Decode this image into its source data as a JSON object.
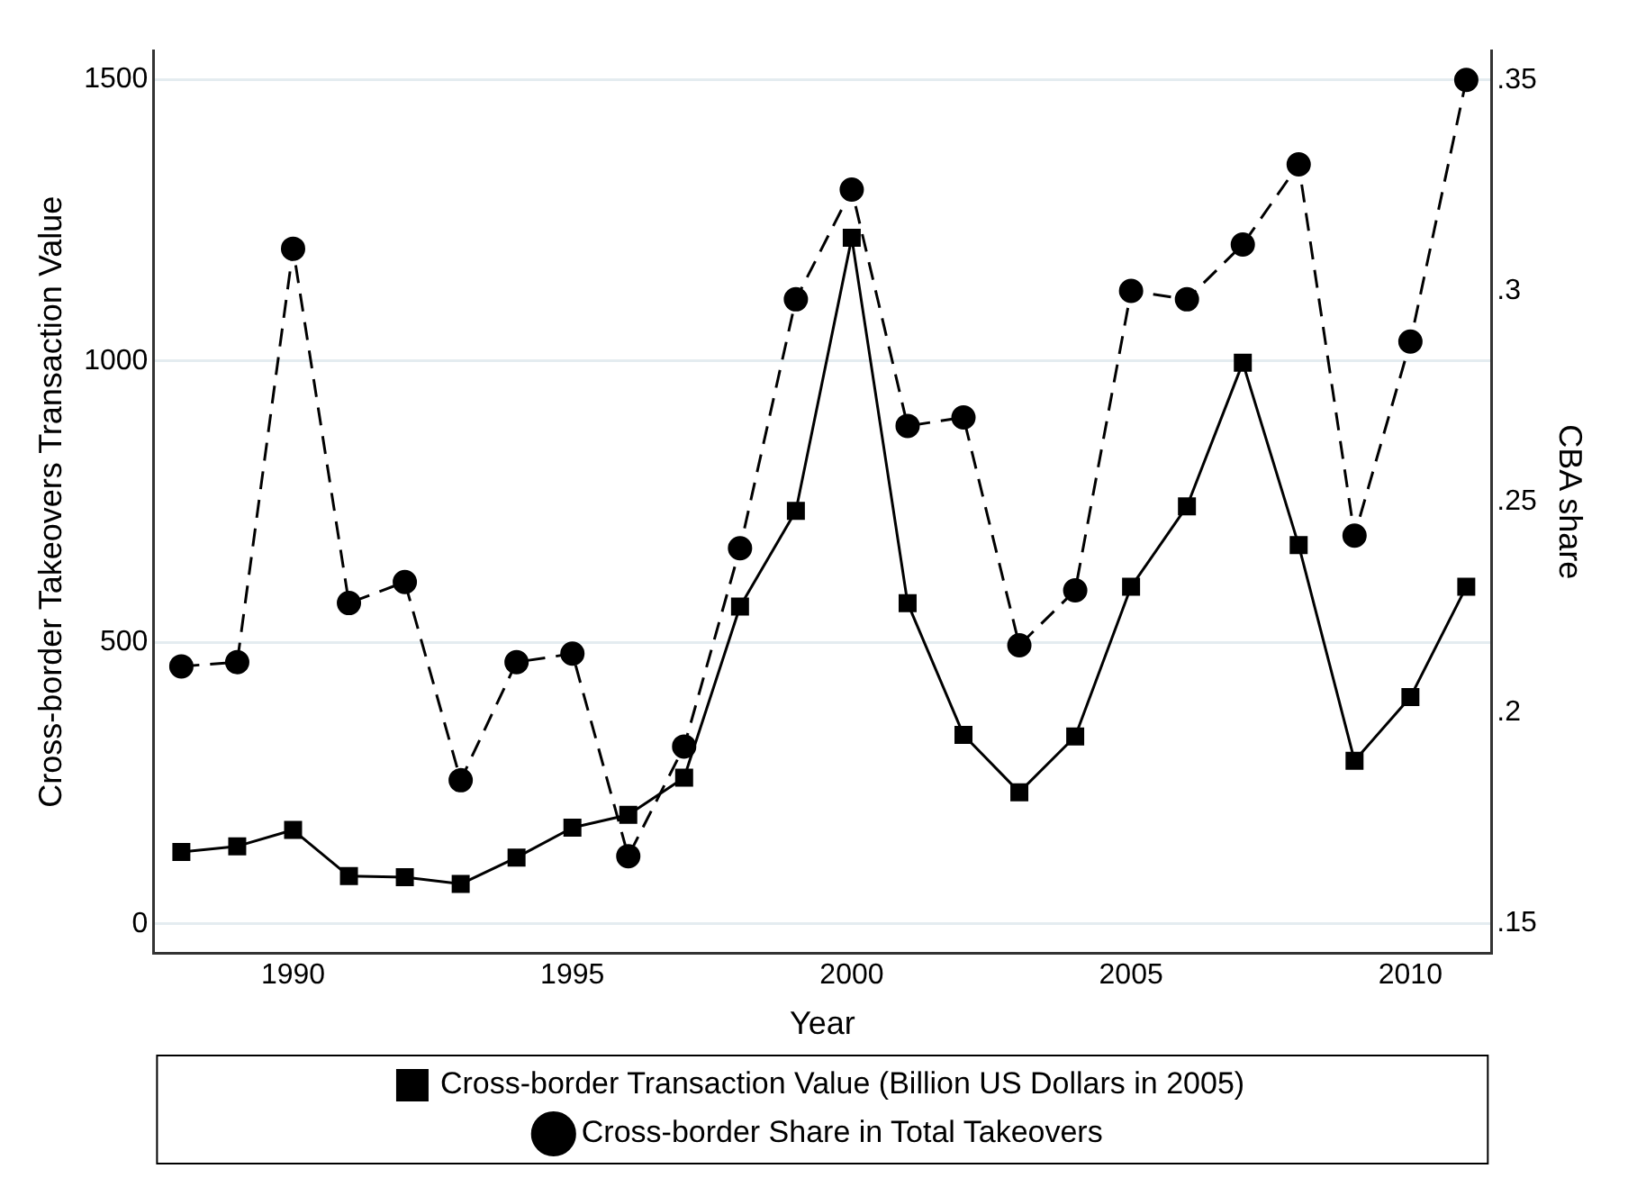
{
  "chart_data": {
    "type": "line",
    "x": [
      1988,
      1989,
      1990,
      1991,
      1992,
      1993,
      1994,
      1995,
      1996,
      1997,
      1998,
      1999,
      2000,
      2001,
      2002,
      2003,
      2004,
      2005,
      2006,
      2007,
      2008,
      2009,
      2010,
      2011
    ],
    "series": [
      {
        "name": "Cross-border Transaction Value (Billion US Dollars in 2005)",
        "color": "#000000",
        "marker": "square",
        "line_style": "solid",
        "values": [
          128,
          138,
          167,
          85,
          83,
          71,
          118,
          171,
          194,
          260,
          564,
          734,
          1219,
          570,
          336,
          234,
          333,
          599,
          742,
          997,
          673,
          290,
          403,
          599
        ]
      },
      {
        "name": "Cross-border Share in Total Takeovers",
        "color": "#000000",
        "marker": "circle",
        "line_style": "dashed",
        "axis": "y2",
        "values": [
          0.211,
          0.212,
          0.31,
          0.226,
          0.231,
          0.184,
          0.212,
          0.214,
          0.166,
          0.192,
          0.239,
          0.298,
          0.324,
          0.268,
          0.27,
          0.216,
          0.229,
          0.3,
          0.298,
          0.311,
          0.33,
          0.242,
          0.288,
          0.35
        ]
      }
    ],
    "xlabel": "Year",
    "ylabel": "Cross-border Takeovers Transaction Value",
    "y2label": "CBA share",
    "xlim": [
      1987.5,
      2011.45
    ],
    "xticks": [
      1990,
      1995,
      2000,
      2005,
      2010
    ],
    "ylim": [
      -52,
      1552
    ],
    "yticks": [
      0,
      500,
      1000,
      1500
    ],
    "y2lim": [
      0.143,
      0.357
    ],
    "y2ticks": [
      {
        "value": 0.15,
        "label": ".15"
      },
      {
        "value": 0.2,
        "label": ".2"
      },
      {
        "value": 0.25,
        "label": ".25"
      },
      {
        "value": 0.3,
        "label": ".3"
      },
      {
        "value": 0.35,
        "label": ".35"
      }
    ],
    "grid": "y",
    "legend": "bottom"
  }
}
